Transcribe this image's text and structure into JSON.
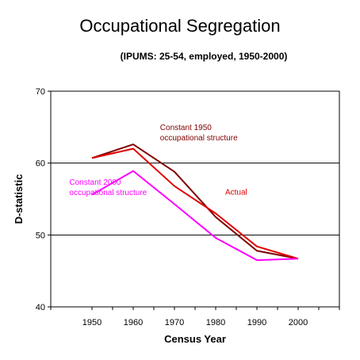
{
  "chart_data": {
    "type": "line",
    "title": "Occupational Segregation",
    "subtitle": "(IPUMS: 25-54, employed, 1950-2000)",
    "xlabel": "Census Year",
    "ylabel": "D-statistic",
    "x": [
      1950,
      1960,
      1970,
      1980,
      1990,
      2000
    ],
    "xlim": [
      1940,
      2010
    ],
    "ylim": [
      40,
      70
    ],
    "yticks": [
      40,
      50,
      60,
      70
    ],
    "grid_y": [
      50,
      60
    ],
    "series": [
      {
        "name": "Constant 1950 occupational structure",
        "color": "#800000",
        "values": [
          60.7,
          62.6,
          58.8,
          52.5,
          47.8,
          46.7
        ]
      },
      {
        "name": "Actual",
        "color": "#e00000",
        "values": [
          60.7,
          62.0,
          56.8,
          53.0,
          48.4,
          46.7
        ]
      },
      {
        "name": "Constant 2000 occupational structure",
        "color": "#ff00ff",
        "values": [
          55.6,
          58.9,
          54.3,
          49.6,
          46.5,
          46.7
        ]
      }
    ],
    "annotations": [
      {
        "lines": [
          "Constant 1950",
          "occupational structure"
        ],
        "color": "#800000"
      },
      {
        "lines": [
          "Actual"
        ],
        "color": "#e00000"
      },
      {
        "lines": [
          "Constant 2000",
          "occupational structure"
        ],
        "color": "#ff00ff"
      }
    ]
  }
}
